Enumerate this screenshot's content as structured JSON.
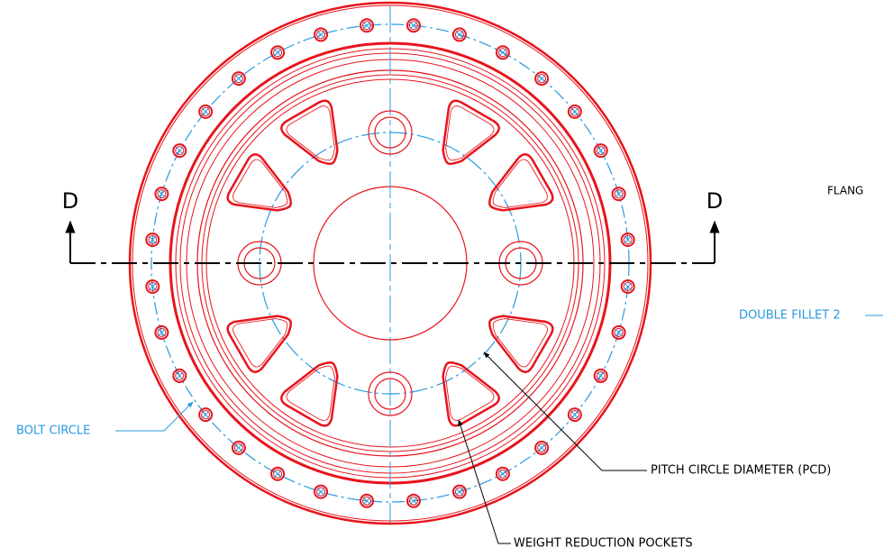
{
  "section_labels": [
    "D",
    "D"
  ],
  "callouts": {
    "flange": "FLANG",
    "double_fillet": "DOUBLE FILLET 2",
    "bolt_circle": "BOLT CIRCLE",
    "pcd": "PITCH CIRCLE DIAMETER (PCD)",
    "pockets": "WEIGHT REDUCTION POCKETS"
  }
}
